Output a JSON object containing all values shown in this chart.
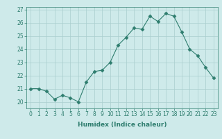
{
  "x": [
    0,
    1,
    2,
    3,
    4,
    5,
    6,
    7,
    8,
    9,
    10,
    11,
    12,
    13,
    14,
    15,
    16,
    17,
    18,
    19,
    20,
    21,
    22,
    23
  ],
  "y": [
    21.0,
    21.0,
    20.8,
    20.2,
    20.5,
    20.3,
    20.0,
    21.5,
    22.3,
    22.4,
    23.0,
    24.3,
    24.9,
    25.6,
    25.5,
    26.5,
    26.1,
    26.7,
    26.5,
    25.3,
    24.0,
    23.5,
    22.6,
    21.8
  ],
  "line_color": "#2e7d6e",
  "marker": "D",
  "marker_size": 2.5,
  "bg_color": "#ceeaea",
  "grid_color": "#aacece",
  "xlabel": "Humidex (Indice chaleur)",
  "xlim": [
    -0.5,
    23.5
  ],
  "ylim": [
    19.5,
    27.2
  ],
  "yticks": [
    20,
    21,
    22,
    23,
    24,
    25,
    26,
    27
  ],
  "xtick_labels": [
    "0",
    "1",
    "2",
    "3",
    "4",
    "5",
    "6",
    "7",
    "8",
    "9",
    "10",
    "11",
    "12",
    "13",
    "14",
    "15",
    "16",
    "17",
    "18",
    "19",
    "20",
    "21",
    "22",
    "23"
  ],
  "tick_color": "#2e7d6e",
  "label_color": "#2e7d6e"
}
